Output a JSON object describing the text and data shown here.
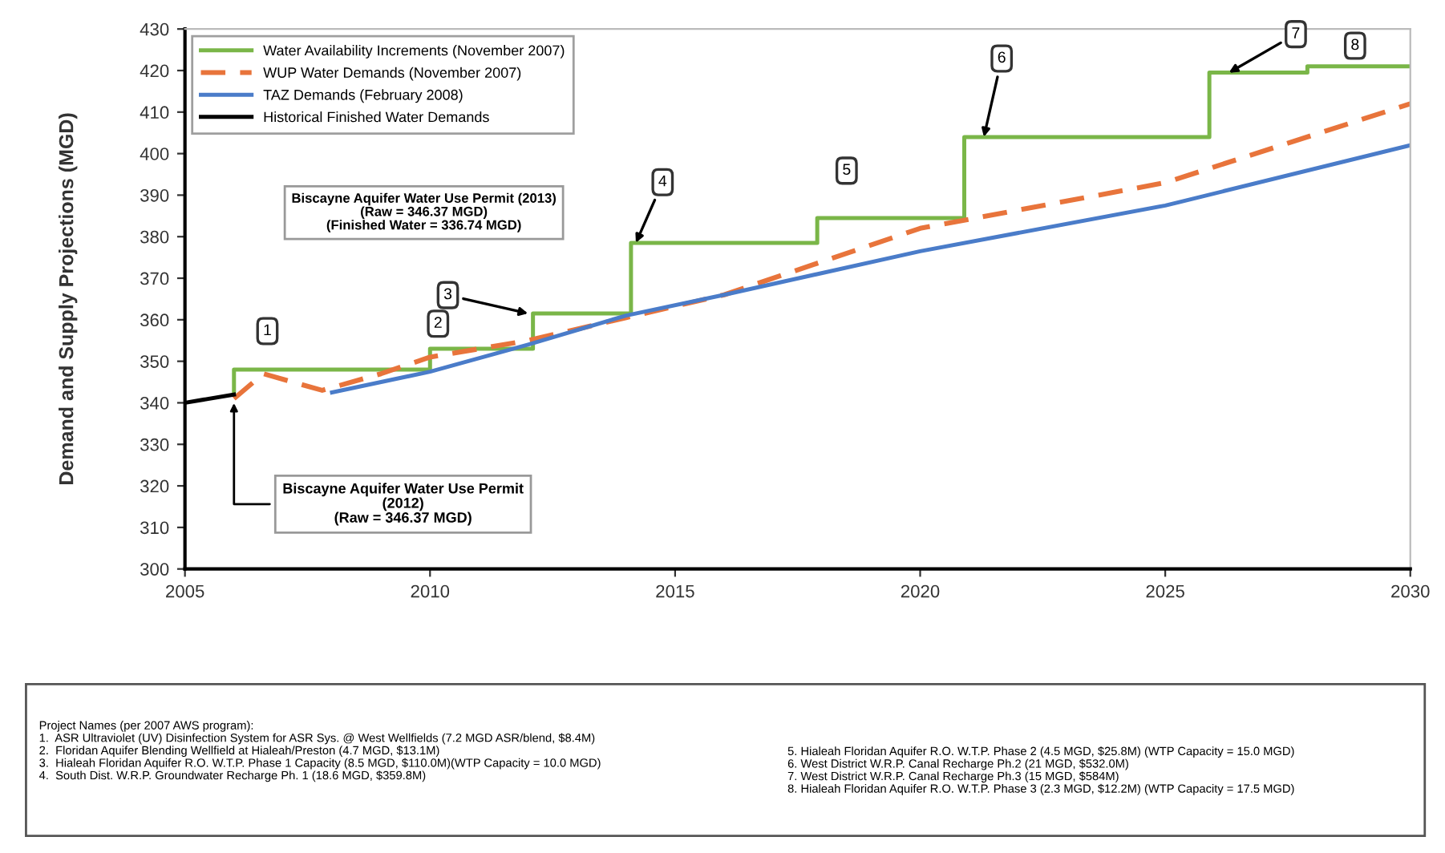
{
  "chart_data": {
    "type": "line",
    "ylabel": "Demand and Supply Projections (MGD)",
    "xlim": [
      2005,
      2030
    ],
    "xticks": [
      2005,
      2010,
      2015,
      2020,
      2025,
      2030
    ],
    "ylim": [
      300,
      430
    ],
    "yticks": [
      300,
      310,
      320,
      330,
      340,
      350,
      360,
      370,
      380,
      390,
      400,
      410,
      420,
      430
    ],
    "grid": false,
    "legend": "top left",
    "marker": "none",
    "series": [
      {
        "name": "Water Availability Increments (November 2007)",
        "type": "step",
        "color": "#7ab648",
        "line_style": "solid",
        "x": [
          2006,
          2006,
          2010,
          2012.1,
          2014.1,
          2017.9,
          2020.9,
          2025.9,
          2027.9,
          2030
        ],
        "values": [
          342,
          348,
          353,
          361.5,
          378.5,
          384.5,
          404,
          419.5,
          421,
          421
        ]
      },
      {
        "name": "WUP Water Demands (November 2007)",
        "type": "line",
        "color": "#e8743b",
        "line_style": "dashed",
        "x": [
          2006,
          2006.6,
          2007.8,
          2009,
          2010,
          2012,
          2014,
          2016,
          2020,
          2025,
          2030
        ],
        "values": [
          341,
          347,
          343,
          347,
          351,
          355,
          360.5,
          366,
          382,
          393,
          412
        ]
      },
      {
        "name": "TAZ Demands (February 2008)",
        "type": "line",
        "color": "#4a7cc9",
        "line_style": "solid",
        "x": [
          2008,
          2010,
          2012,
          2014,
          2016,
          2020,
          2025,
          2030
        ],
        "values": [
          342.5,
          347.5,
          354,
          361,
          366,
          376.5,
          387.5,
          402
        ]
      },
      {
        "name": "Historical Finished Water Demands",
        "type": "line",
        "color": "#000000",
        "line_style": "solid",
        "x": [
          2005,
          2006
        ],
        "values": [
          340,
          342
        ]
      }
    ],
    "annotations": [
      {
        "text": "1",
        "x": 2006.5,
        "y": 348
      },
      {
        "text": "2",
        "x": 2010.3,
        "y": 353
      },
      {
        "text": "3",
        "x": 2012,
        "y": 361.5
      },
      {
        "text": "4",
        "x": 2014.2,
        "y": 378.5
      },
      {
        "text": "5",
        "x": 2018.5,
        "y": 384.5
      },
      {
        "text": "6",
        "x": 2021.3,
        "y": 404
      },
      {
        "text": "7",
        "x": 2026.3,
        "y": 419.5
      },
      {
        "text": "8",
        "x": 2028.6,
        "y": 421
      },
      {
        "text": "Biscayne Aquifer Water Use Permit\n(2012)\n(Raw = 346.37 MGD)",
        "x": 2006,
        "y": 341
      },
      "Biscayne Aquifer Water Use Permit (2013)\n(Raw = 346.37 MGD)\n(Finished Water = 336.74 MGD)",
      "Project Names (per 2007 AWS program):\n1.  ASR Ultraviolet (UV) Disinfection System for ASR Sys. @ West Wellfields (7.2 MGD ASR/blend, $8.4M)\n2.  Floridan Aquifer Blending Wellfield at Hialeah/Preston (4.7 MGD, $13.1M)\n3.  Hialeah Floridan Aquifer R.O. W.T.P. Phase 1 Capacity (8.5 MGD, $110.0M)(WTP Capacity = 10.0 MGD)\n4.  South Dist. W.R.P. Groundwater Recharge Ph. 1 (18.6 MGD, $359.8M)",
      "5. Hialeah Floridan Aquifer R.O. W.T.P. Phase 2 (4.5 MGD, $25.8M) (WTP Capacity = 15.0 MGD)\n6. West District W.R.P. Canal Recharge Ph.2 (21 MGD, $532.0M)\n7. West District W.R.P. Canal Recharge Ph.3 (15 MGD, $584M)\n8. Hialeah Floridan Aquifer R.O. W.T.P. Phase 3 (2.3 MGD, $12.2M) (WTP Capacity = 17.5 MGD)"
    ]
  }
}
